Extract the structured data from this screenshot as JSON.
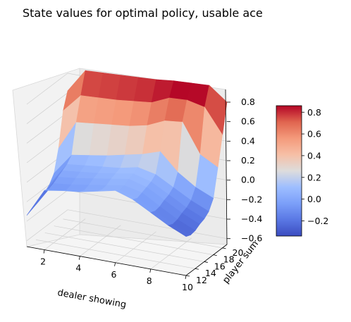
{
  "chart_data": {
    "type": "surface3d",
    "title": "State values for optimal policy, usable ace",
    "xlabel": "dealer showing",
    "ylabel": "player sum",
    "zlabel": "",
    "colormap": "coolwarm",
    "x": [
      1,
      2,
      3,
      4,
      5,
      6,
      7,
      8,
      9,
      10
    ],
    "y": [
      12,
      13,
      14,
      15,
      16,
      17,
      18,
      19,
      20,
      21
    ],
    "xlim": [
      1,
      10
    ],
    "ylim": [
      12,
      21
    ],
    "zlim": [
      -0.66,
      0.93
    ],
    "x_ticks": [
      "2",
      "4",
      "6",
      "8",
      "10"
    ],
    "y_ticks": [
      "12",
      "14",
      "16",
      "18",
      "20"
    ],
    "z_ticks": [
      "−0.6",
      "−0.4",
      "−0.2",
      "0.0",
      "0.2",
      "0.4",
      "0.6",
      "0.8"
    ],
    "colorbar_ticks": [
      "−0.2",
      "0.0",
      "0.2",
      "0.4",
      "0.6",
      "0.8"
    ],
    "colorbar_range": [
      -0.34,
      0.86
    ],
    "z_note": "rows indexed by player sum 12..21, columns by dealer showing 1..10",
    "z": [
      [
        -0.34,
        -0.05,
        -0.02,
        0.0,
        0.04,
        0.08,
        0.02,
        -0.08,
        -0.18,
        -0.26
      ],
      [
        -0.32,
        -0.07,
        -0.05,
        -0.02,
        0.02,
        0.05,
        0.0,
        -0.1,
        -0.2,
        -0.28
      ],
      [
        -0.3,
        -0.05,
        -0.03,
        0.0,
        0.03,
        0.06,
        0.02,
        -0.09,
        -0.19,
        -0.27
      ],
      [
        -0.27,
        -0.02,
        0.0,
        0.03,
        0.06,
        0.09,
        0.04,
        -0.06,
        -0.16,
        -0.24
      ],
      [
        -0.24,
        0.01,
        0.03,
        0.05,
        0.08,
        0.11,
        0.06,
        -0.04,
        -0.14,
        -0.22
      ],
      [
        -0.2,
        0.04,
        0.06,
        0.08,
        0.1,
        0.14,
        0.1,
        0.0,
        -0.1,
        -0.18
      ],
      [
        -0.12,
        0.1,
        0.13,
        0.16,
        0.2,
        0.24,
        0.3,
        0.12,
        0.0,
        -0.08
      ],
      [
        0.1,
        0.4,
        0.42,
        0.44,
        0.46,
        0.5,
        0.58,
        0.6,
        0.3,
        0.2
      ],
      [
        0.45,
        0.64,
        0.65,
        0.66,
        0.68,
        0.7,
        0.78,
        0.79,
        0.75,
        0.5
      ],
      [
        0.62,
        0.86,
        0.87,
        0.88,
        0.89,
        0.9,
        0.92,
        0.93,
        0.94,
        0.8
      ]
    ]
  }
}
